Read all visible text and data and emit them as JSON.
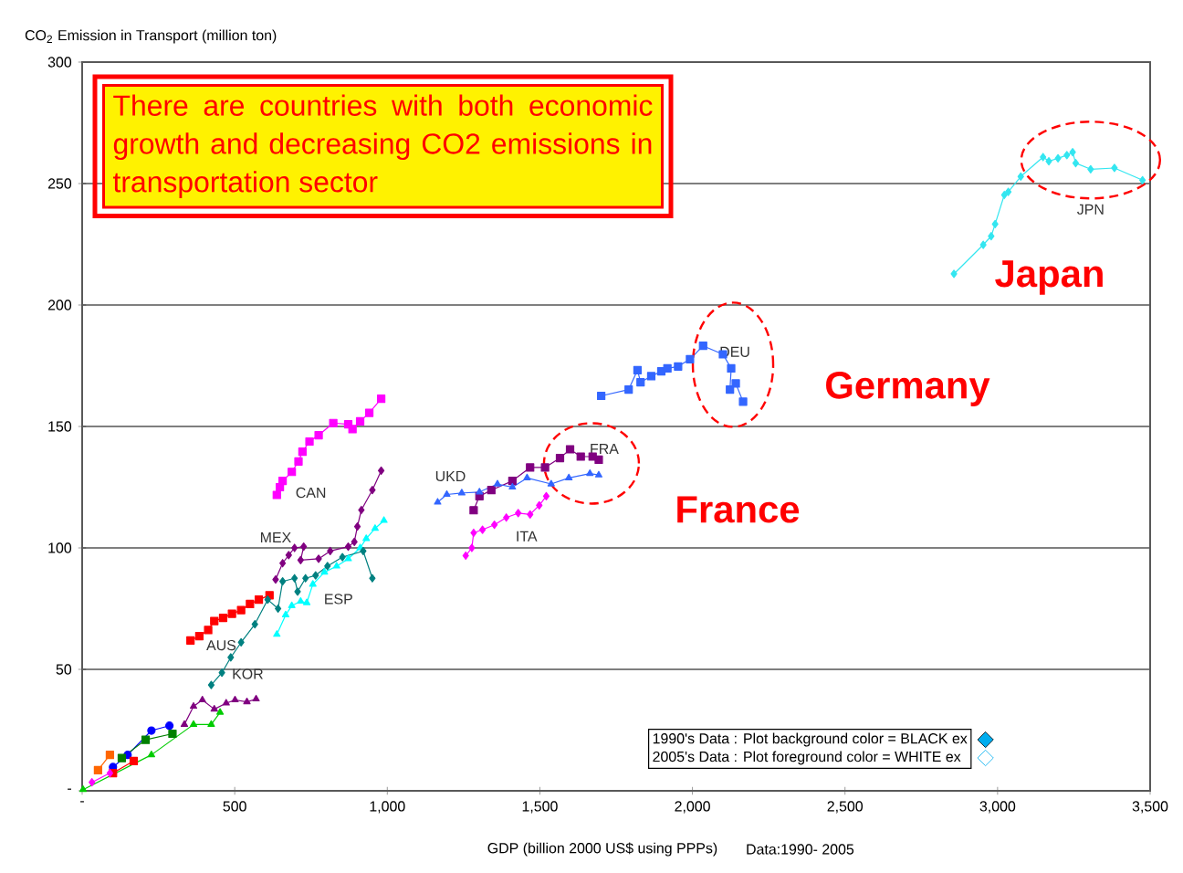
{
  "chart_data": {
    "type": "line",
    "ylabel": "CO$_{2}$ Emission in Transport (million ton)",
    "xlabel": "GDP (billion 2000 US$ using PPPs)",
    "xlim": [
      0,
      3500
    ],
    "ylim": [
      0,
      300
    ],
    "xticks": [
      {
        "value": 0,
        "label": "-"
      },
      500,
      {
        "value": 1000,
        "label": "1,000"
      },
      {
        "value": 1500,
        "label": "1,500"
      },
      {
        "value": 2000,
        "label": "2,000"
      },
      {
        "value": 2500,
        "label": "2,500"
      },
      {
        "value": 3000,
        "label": "3,000"
      },
      {
        "value": 3500,
        "label": "3,500"
      }
    ],
    "yticks": [
      {
        "value": 0,
        "label": "-"
      },
      50,
      100,
      150,
      200,
      250,
      300
    ],
    "grid": "y",
    "line_style": "solid",
    "series": [
      {
        "name": "JPN",
        "color": "#33e6f0",
        "marker": "diamond",
        "x": [
          2857,
          2953,
          2979,
          2992,
          3022,
          3035,
          3076,
          3149,
          3168,
          3198,
          3227,
          3246,
          3256,
          3305,
          3383,
          3475
        ],
        "values": [
          212.8,
          224.8,
          228.3,
          233.3,
          245.3,
          246.6,
          252.9,
          260.9,
          259.2,
          260.4,
          261.7,
          262.9,
          258.4,
          255.9,
          256.4,
          251.4
        ]
      },
      {
        "name": "DEU",
        "color": "#3366ff",
        "marker": "square",
        "x": [
          1701,
          1791,
          1820,
          1830,
          1865,
          1898,
          1918,
          1953,
          1992,
          2035,
          2100,
          2127,
          2123,
          2142,
          2166
        ],
        "values": [
          162.6,
          165.2,
          173.2,
          168.2,
          170.7,
          172.7,
          173.9,
          174.7,
          177.7,
          183.2,
          179.7,
          173.9,
          165.2,
          167.7,
          160.2
        ]
      },
      {
        "name": "FRA",
        "color": "#800080",
        "marker": "square",
        "x": [
          1283,
          1302,
          1341,
          1410,
          1468,
          1517,
          1566,
          1599,
          1634,
          1673,
          1693
        ],
        "values": [
          115.5,
          121.3,
          123.8,
          127.6,
          133.1,
          133.1,
          137,
          140.6,
          137.6,
          137.6,
          136.3
        ]
      },
      {
        "name": "UKD",
        "color": "#3366ff",
        "marker": "triangle",
        "x": [
          1165,
          1195,
          1244,
          1302,
          1361,
          1410,
          1458,
          1537,
          1595,
          1664,
          1693
        ],
        "values": [
          118.8,
          122,
          122.6,
          123,
          126.3,
          125,
          128.8,
          126.3,
          128.8,
          130.6,
          130
        ]
      },
      {
        "name": "ITA",
        "color": "#ff00ff",
        "marker": "diamond",
        "x": [
          1257,
          1277,
          1283,
          1312,
          1351,
          1390,
          1429,
          1468,
          1498,
          1521
        ],
        "values": [
          96.8,
          100,
          106.2,
          107.5,
          109.5,
          112.5,
          114.3,
          113.8,
          117.5,
          121.3
        ]
      },
      {
        "name": "CAN",
        "color": "#ff00ff",
        "marker": "square",
        "x": [
          638,
          648,
          657,
          687,
          709,
          722,
          745,
          775,
          823,
          872,
          886,
          911,
          941,
          980
        ],
        "values": [
          121.8,
          125,
          127.6,
          131.3,
          135.6,
          139.6,
          143.8,
          146.4,
          151.4,
          150.9,
          148.9,
          152.1,
          155.6,
          161.4
        ]
      },
      {
        "name": "MEX",
        "color": "#800080",
        "marker": "diamond",
        "x": [
          634,
          657,
          677,
          696,
          726,
          716,
          775,
          813,
          872,
          892,
          902,
          915,
          951,
          980
        ],
        "values": [
          87,
          93.7,
          97,
          100,
          100.5,
          95,
          95.5,
          98.7,
          100.5,
          102.5,
          108.8,
          115.6,
          123.8,
          131.8
        ]
      },
      {
        "name": "ESP",
        "color": "#00ffff",
        "marker": "triangle",
        "x": [
          638,
          667,
          687,
          716,
          736,
          756,
          794,
          834,
          872,
          911,
          931,
          960,
          989
        ],
        "values": [
          64.4,
          72.4,
          76.2,
          78,
          77.4,
          85,
          90,
          92.5,
          95.5,
          100,
          103.8,
          108,
          111.3
        ]
      },
      {
        "name": "AUS",
        "color": "#ff0000",
        "marker": "square",
        "x": [
          355,
          384,
          413,
          433,
          462,
          491,
          521,
          550,
          579,
          614
        ],
        "values": [
          61.9,
          63.7,
          66.2,
          69.9,
          71.2,
          72.9,
          74.4,
          76.9,
          78.7,
          80.5
        ]
      },
      {
        "name": "KOR",
        "color": "#008080",
        "marker": "diamond",
        "x": [
          423,
          458,
          487,
          521,
          566,
          608,
          642,
          657,
          696,
          706,
          732,
          765,
          804,
          853,
          921,
          951
        ],
        "values": [
          43.6,
          48.6,
          54.9,
          61.1,
          68.6,
          78.7,
          75,
          86.2,
          87.5,
          82,
          87.5,
          88.7,
          92.5,
          96.2,
          98.7,
          87.5
        ]
      },
      {
        "color": "#800080",
        "marker": "triangle",
        "x": [
          335,
          365,
          394,
          433,
          472,
          501,
          540,
          570
        ],
        "values": [
          27.3,
          34.8,
          37.4,
          33.6,
          36.1,
          37.4,
          36.6,
          37.8
        ]
      },
      {
        "color": "#00cc00",
        "marker": "triangle",
        "x": [
          3,
          227,
          306,
          365,
          423,
          452
        ],
        "values": [
          0.5,
          14.8,
          null,
          27.3,
          27.3,
          32.3
        ]
      },
      {
        "color": "#0000ff",
        "marker": "circle",
        "x": [
          101,
          149,
          227,
          286
        ],
        "values": [
          9.8,
          14.8,
          24.8,
          26.8
        ]
      },
      {
        "color": "#ff6600",
        "marker": "square",
        "x": [
          52,
          91
        ],
        "values": [
          8.5,
          14.8
        ]
      },
      {
        "color": "#ff0000",
        "marker": "square",
        "x": [
          101,
          169
        ],
        "values": [
          7.3,
          12.3
        ]
      },
      {
        "color": "#008000",
        "marker": "square",
        "x": [
          130,
          208,
          296
        ],
        "values": [
          13.5,
          21,
          23.5
        ]
      },
      {
        "color": "#ff00ff",
        "marker": "diamond",
        "x": [
          32,
          91
        ],
        "values": [
          3.5,
          7.3
        ]
      }
    ],
    "annotations": [
      "Japan",
      "Germany",
      "France",
      "There are countries with both economic growth and decreasing CO2 emissions in transportation sector",
      "1990's Data : Plot background color = BLACK ex",
      "2005's Data : Plot foreground color = WHITE  ex",
      "Data:1990- 2005"
    ]
  }
}
